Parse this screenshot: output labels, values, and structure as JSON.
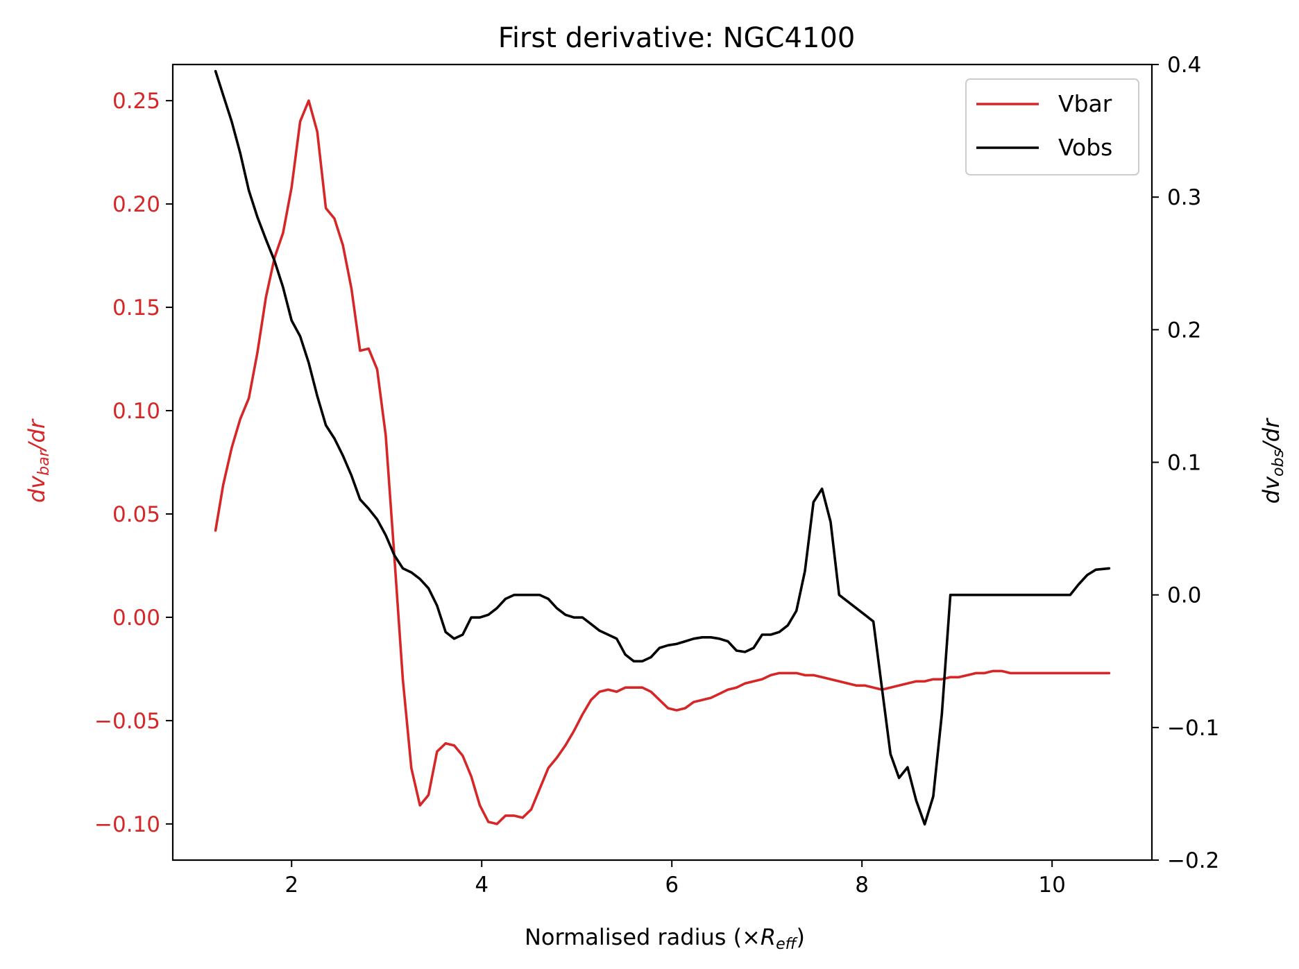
{
  "chart_data": {
    "type": "line",
    "title": "First derivative: NGC4100",
    "xlabel": "Normalised radius (×",
    "xlabel_math": "R",
    "xlabel_sub": "eff",
    "xlabel_close": ")",
    "ylabel_left_main": "dv",
    "ylabel_left_sub": "bar",
    "ylabel_left_tail": "/dr",
    "ylabel_right_main": "dv",
    "ylabel_right_sub": "obs",
    "ylabel_right_tail": "/dr",
    "xlim": [
      0.75,
      11.05
    ],
    "ylim_left": [
      -0.1175,
      0.2675
    ],
    "ylim_right": [
      -0.2,
      0.4
    ],
    "x_ticks": [
      2,
      4,
      6,
      8,
      10
    ],
    "x_tick_labels": [
      "2",
      "4",
      "6",
      "8",
      "10"
    ],
    "y_left_ticks": [
      0.25,
      0.2,
      0.15,
      0.1,
      0.05,
      0.0,
      -0.05,
      -0.1
    ],
    "y_left_tick_labels": [
      "0.25",
      "0.20",
      "0.15",
      "0.10",
      "0.05",
      "0.00",
      "−0.05",
      "−0.10"
    ],
    "y_right_ticks": [
      0.4,
      0.3,
      0.2,
      0.1,
      0.0,
      -0.1,
      -0.2
    ],
    "y_right_tick_labels": [
      "0.4",
      "0.3",
      "0.2",
      "0.1",
      "0.0",
      "−0.1",
      "−0.2"
    ],
    "grid": false,
    "legend_position": "top-right",
    "series": [
      {
        "name": "Vbar",
        "axis": "left",
        "color": "#d62728",
        "points": [
          [
            1.2,
            0.042
          ],
          [
            1.28,
            0.064
          ],
          [
            1.37,
            0.082
          ],
          [
            1.46,
            0.096
          ],
          [
            1.55,
            0.106
          ],
          [
            1.64,
            0.128
          ],
          [
            1.73,
            0.155
          ],
          [
            1.82,
            0.174
          ],
          [
            1.91,
            0.186
          ],
          [
            2.0,
            0.208
          ],
          [
            2.09,
            0.24
          ],
          [
            2.18,
            0.25
          ],
          [
            2.27,
            0.235
          ],
          [
            2.36,
            0.198
          ],
          [
            2.45,
            0.193
          ],
          [
            2.54,
            0.18
          ],
          [
            2.63,
            0.159
          ],
          [
            2.72,
            0.129
          ],
          [
            2.81,
            0.13
          ],
          [
            2.9,
            0.12
          ],
          [
            2.99,
            0.088
          ],
          [
            3.08,
            0.03
          ],
          [
            3.17,
            -0.03
          ],
          [
            3.26,
            -0.073
          ],
          [
            3.35,
            -0.091
          ],
          [
            3.44,
            -0.086
          ],
          [
            3.53,
            -0.065
          ],
          [
            3.62,
            -0.061
          ],
          [
            3.71,
            -0.062
          ],
          [
            3.8,
            -0.067
          ],
          [
            3.89,
            -0.077
          ],
          [
            3.98,
            -0.091
          ],
          [
            4.07,
            -0.099
          ],
          [
            4.16,
            -0.1
          ],
          [
            4.25,
            -0.096
          ],
          [
            4.34,
            -0.096
          ],
          [
            4.43,
            -0.097
          ],
          [
            4.52,
            -0.093
          ],
          [
            4.61,
            -0.083
          ],
          [
            4.7,
            -0.073
          ],
          [
            4.79,
            -0.068
          ],
          [
            4.88,
            -0.062
          ],
          [
            4.97,
            -0.055
          ],
          [
            5.06,
            -0.047
          ],
          [
            5.15,
            -0.04
          ],
          [
            5.24,
            -0.036
          ],
          [
            5.33,
            -0.035
          ],
          [
            5.42,
            -0.036
          ],
          [
            5.51,
            -0.034
          ],
          [
            5.6,
            -0.034
          ],
          [
            5.69,
            -0.034
          ],
          [
            5.78,
            -0.036
          ],
          [
            5.87,
            -0.04
          ],
          [
            5.96,
            -0.044
          ],
          [
            6.05,
            -0.045
          ],
          [
            6.14,
            -0.044
          ],
          [
            6.23,
            -0.041
          ],
          [
            6.32,
            -0.04
          ],
          [
            6.41,
            -0.039
          ],
          [
            6.5,
            -0.037
          ],
          [
            6.59,
            -0.035
          ],
          [
            6.68,
            -0.034
          ],
          [
            6.77,
            -0.032
          ],
          [
            6.86,
            -0.031
          ],
          [
            6.95,
            -0.03
          ],
          [
            7.04,
            -0.028
          ],
          [
            7.13,
            -0.027
          ],
          [
            7.22,
            -0.027
          ],
          [
            7.31,
            -0.027
          ],
          [
            7.4,
            -0.028
          ],
          [
            7.49,
            -0.028
          ],
          [
            7.58,
            -0.029
          ],
          [
            7.67,
            -0.03
          ],
          [
            7.76,
            -0.031
          ],
          [
            7.85,
            -0.032
          ],
          [
            7.94,
            -0.033
          ],
          [
            8.03,
            -0.033
          ],
          [
            8.12,
            -0.034
          ],
          [
            8.21,
            -0.035
          ],
          [
            8.3,
            -0.034
          ],
          [
            8.39,
            -0.033
          ],
          [
            8.48,
            -0.032
          ],
          [
            8.57,
            -0.031
          ],
          [
            8.66,
            -0.031
          ],
          [
            8.75,
            -0.03
          ],
          [
            8.84,
            -0.03
          ],
          [
            8.93,
            -0.029
          ],
          [
            9.02,
            -0.029
          ],
          [
            9.11,
            -0.028
          ],
          [
            9.2,
            -0.027
          ],
          [
            9.29,
            -0.027
          ],
          [
            9.38,
            -0.026
          ],
          [
            9.47,
            -0.026
          ],
          [
            9.56,
            -0.027
          ],
          [
            9.65,
            -0.027
          ],
          [
            9.74,
            -0.027
          ],
          [
            9.83,
            -0.027
          ],
          [
            9.92,
            -0.027
          ],
          [
            10.01,
            -0.027
          ],
          [
            10.1,
            -0.027
          ],
          [
            10.19,
            -0.027
          ],
          [
            10.28,
            -0.027
          ],
          [
            10.37,
            -0.027
          ],
          [
            10.46,
            -0.027
          ],
          [
            10.55,
            -0.027
          ],
          [
            10.6,
            -0.027
          ]
        ]
      },
      {
        "name": "Vobs",
        "axis": "right",
        "color": "#000000",
        "points": [
          [
            1.2,
            0.395
          ],
          [
            1.28,
            0.377
          ],
          [
            1.37,
            0.357
          ],
          [
            1.46,
            0.333
          ],
          [
            1.55,
            0.305
          ],
          [
            1.64,
            0.285
          ],
          [
            1.73,
            0.268
          ],
          [
            1.82,
            0.252
          ],
          [
            1.91,
            0.232
          ],
          [
            2.0,
            0.207
          ],
          [
            2.09,
            0.195
          ],
          [
            2.18,
            0.175
          ],
          [
            2.27,
            0.15
          ],
          [
            2.36,
            0.128
          ],
          [
            2.45,
            0.118
          ],
          [
            2.54,
            0.105
          ],
          [
            2.63,
            0.09
          ],
          [
            2.72,
            0.072
          ],
          [
            2.81,
            0.065
          ],
          [
            2.9,
            0.057
          ],
          [
            2.99,
            0.045
          ],
          [
            3.08,
            0.03
          ],
          [
            3.17,
            0.02
          ],
          [
            3.26,
            0.017
          ],
          [
            3.35,
            0.012
          ],
          [
            3.44,
            0.005
          ],
          [
            3.53,
            -0.008
          ],
          [
            3.62,
            -0.028
          ],
          [
            3.71,
            -0.033
          ],
          [
            3.8,
            -0.03
          ],
          [
            3.89,
            -0.017
          ],
          [
            3.98,
            -0.017
          ],
          [
            4.07,
            -0.015
          ],
          [
            4.16,
            -0.01
          ],
          [
            4.25,
            -0.003
          ],
          [
            4.34,
            0.0
          ],
          [
            4.43,
            0.0
          ],
          [
            4.52,
            0.0
          ],
          [
            4.61,
            0.0
          ],
          [
            4.7,
            -0.003
          ],
          [
            4.79,
            -0.01
          ],
          [
            4.88,
            -0.015
          ],
          [
            4.97,
            -0.017
          ],
          [
            5.06,
            -0.017
          ],
          [
            5.15,
            -0.022
          ],
          [
            5.24,
            -0.027
          ],
          [
            5.33,
            -0.03
          ],
          [
            5.42,
            -0.033
          ],
          [
            5.51,
            -0.045
          ],
          [
            5.6,
            -0.05
          ],
          [
            5.69,
            -0.05
          ],
          [
            5.78,
            -0.047
          ],
          [
            5.87,
            -0.04
          ],
          [
            5.96,
            -0.038
          ],
          [
            6.05,
            -0.037
          ],
          [
            6.14,
            -0.035
          ],
          [
            6.23,
            -0.033
          ],
          [
            6.32,
            -0.032
          ],
          [
            6.41,
            -0.032
          ],
          [
            6.5,
            -0.033
          ],
          [
            6.59,
            -0.035
          ],
          [
            6.68,
            -0.042
          ],
          [
            6.77,
            -0.043
          ],
          [
            6.86,
            -0.04
          ],
          [
            6.95,
            -0.03
          ],
          [
            7.04,
            -0.03
          ],
          [
            7.13,
            -0.028
          ],
          [
            7.22,
            -0.023
          ],
          [
            7.31,
            -0.012
          ],
          [
            7.4,
            0.018
          ],
          [
            7.49,
            0.07
          ],
          [
            7.58,
            0.08
          ],
          [
            7.67,
            0.055
          ],
          [
            7.76,
            0.0
          ],
          [
            7.85,
            -0.005
          ],
          [
            7.94,
            -0.01
          ],
          [
            8.03,
            -0.015
          ],
          [
            8.12,
            -0.02
          ],
          [
            8.21,
            -0.07
          ],
          [
            8.3,
            -0.12
          ],
          [
            8.39,
            -0.138
          ],
          [
            8.48,
            -0.13
          ],
          [
            8.57,
            -0.155
          ],
          [
            8.66,
            -0.173
          ],
          [
            8.75,
            -0.152
          ],
          [
            8.84,
            -0.09
          ],
          [
            8.93,
            0.0
          ],
          [
            9.02,
            0.0
          ],
          [
            9.11,
            0.0
          ],
          [
            9.2,
            0.0
          ],
          [
            9.29,
            0.0
          ],
          [
            9.38,
            0.0
          ],
          [
            9.47,
            0.0
          ],
          [
            9.56,
            0.0
          ],
          [
            9.65,
            0.0
          ],
          [
            9.74,
            0.0
          ],
          [
            9.83,
            0.0
          ],
          [
            9.92,
            0.0
          ],
          [
            10.01,
            0.0
          ],
          [
            10.1,
            0.0
          ],
          [
            10.19,
            0.0
          ],
          [
            10.28,
            0.008
          ],
          [
            10.37,
            0.015
          ],
          [
            10.46,
            0.019
          ],
          [
            10.6,
            0.02
          ]
        ]
      }
    ]
  },
  "colors": {
    "left_axis": "#d62728",
    "right_axis": "#000000"
  }
}
